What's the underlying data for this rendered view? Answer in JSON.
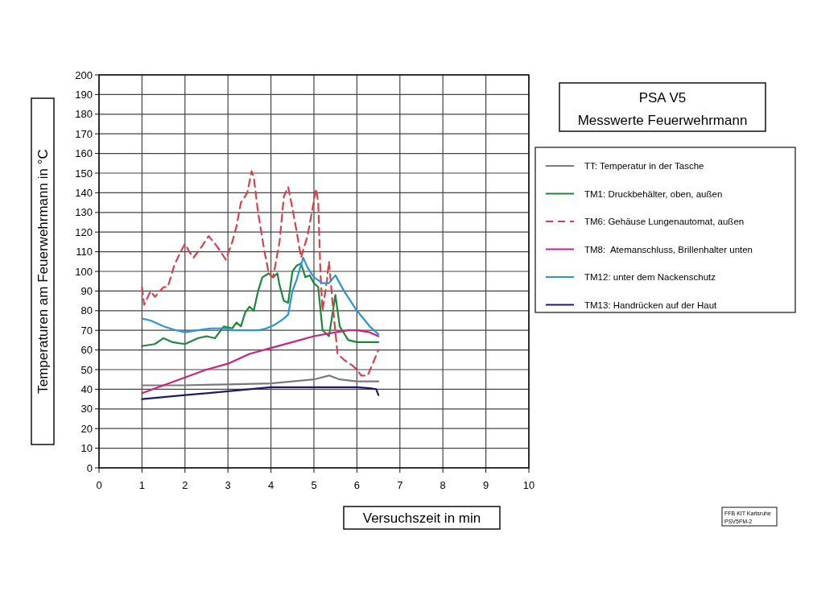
{
  "chart_data": {
    "type": "line",
    "title": "PSA V5",
    "subtitle": "Messwerte Feuerwehrmann",
    "xlabel": "Versuchszeit in min",
    "ylabel": "Temperaturen am Feuerwehrmann in °C",
    "xlim": [
      0,
      10
    ],
    "xticks": [
      0,
      1,
      2,
      3,
      4,
      5,
      6,
      7,
      8,
      9,
      10
    ],
    "ylim": [
      0,
      200
    ],
    "yticks": [
      0,
      10,
      20,
      30,
      40,
      50,
      60,
      70,
      80,
      90,
      100,
      110,
      120,
      130,
      140,
      150,
      160,
      170,
      180,
      190,
      200
    ],
    "grid": true,
    "legend": "right",
    "marker": "none",
    "annotations": [
      "FFB KIT Karlsruhe",
      "PSV5FM-2"
    ],
    "series": [
      {
        "name": "TT: Temperatur in der Tasche",
        "color": "#7a7a7a",
        "x": [
          1,
          2,
          3,
          4,
          4.5,
          5,
          5.35,
          5.6,
          6,
          6.5
        ],
        "values": [
          42,
          42,
          42.5,
          43,
          44,
          45,
          47,
          45,
          44,
          44
        ]
      },
      {
        "name": "TM1: Druckbehälter, oben, außen",
        "color": "#1a8a3a",
        "x": [
          1,
          1.3,
          1.5,
          1.7,
          2,
          2.3,
          2.5,
          2.7,
          2.9,
          3.1,
          3.2,
          3.3,
          3.4,
          3.5,
          3.6,
          3.7,
          3.8,
          3.95,
          4.05,
          4.15,
          4.2,
          4.3,
          4.4,
          4.5,
          4.6,
          4.7,
          4.8,
          4.9,
          5,
          5.1,
          5.2,
          5.35,
          5.5,
          5.6,
          5.8,
          6,
          6.3,
          6.5
        ],
        "values": [
          62,
          63,
          66,
          64,
          63,
          66,
          67,
          66,
          72,
          71,
          74,
          72,
          79,
          82,
          80,
          90,
          97,
          99,
          97,
          99,
          93,
          85,
          84,
          100,
          103,
          104,
          97,
          98,
          94,
          92,
          70,
          67,
          88,
          72,
          65,
          64,
          64,
          64
        ]
      },
      {
        "name": "TM6: Gehäuse Lungenautomat, außen",
        "color": "#d9404a",
        "line_style": "dashed",
        "x": [
          1,
          1.05,
          1.2,
          1.3,
          1.5,
          1.6,
          1.75,
          1.9,
          2,
          2.1,
          2.2,
          2.4,
          2.55,
          2.7,
          2.8,
          2.95,
          3.1,
          3.2,
          3.3,
          3.45,
          3.55,
          3.6,
          3.7,
          3.85,
          3.95,
          4.05,
          4.2,
          4.3,
          4.4,
          4.5,
          4.6,
          4.7,
          4.85,
          5,
          5.05,
          5.1,
          5.15,
          5.2,
          5.3,
          5.35,
          5.45,
          5.55,
          5.7,
          5.9,
          6,
          6.1,
          6.25,
          6.35,
          6.5
        ],
        "values": [
          92,
          83,
          90,
          87,
          92,
          92,
          103,
          110,
          114,
          110,
          107,
          113,
          118,
          114,
          111,
          106,
          115,
          123,
          135,
          140,
          151,
          148,
          130,
          110,
          99,
          97,
          115,
          138,
          143,
          132,
          120,
          107,
          118,
          136,
          142,
          135,
          100,
          80,
          95,
          105,
          80,
          58,
          55,
          52,
          50,
          47,
          47,
          52,
          60
        ]
      },
      {
        "name": "TM8:  Atemanschluss, Brillenhalter unten",
        "color": "#d0207f",
        "x": [
          1,
          1.5,
          2,
          2.5,
          3,
          3.5,
          4,
          4.5,
          5,
          5.5,
          5.8,
          6,
          6.3,
          6.5
        ],
        "values": [
          38,
          42,
          46,
          50,
          53,
          58,
          61,
          64,
          67,
          69,
          70,
          70,
          69,
          67
        ]
      },
      {
        "name": "TM12: unter dem Nackenschutz",
        "color": "#2a94d8",
        "x": [
          1,
          1.2,
          1.5,
          1.8,
          2,
          2.3,
          2.6,
          2.9,
          3.1,
          3.4,
          3.7,
          3.9,
          4.1,
          4.3,
          4.4,
          4.5,
          4.6,
          4.75,
          4.85,
          5,
          5.2,
          5.35,
          5.5,
          5.7,
          6,
          6.3,
          6.5
        ],
        "values": [
          76,
          75,
          72,
          70,
          69,
          70,
          71,
          71,
          70,
          70,
          70,
          71,
          73,
          76,
          78,
          90,
          96,
          107,
          102,
          97,
          94,
          94,
          98,
          90,
          80,
          72,
          68
        ]
      },
      {
        "name": "TM13: Handrücken auf der Haut",
        "color": "#1c1c6e",
        "x": [
          1,
          1.5,
          2,
          2.5,
          3,
          3.5,
          4,
          4.5,
          5,
          5.5,
          6,
          6.3,
          6.45,
          6.5
        ],
        "values": [
          35,
          36,
          37,
          38,
          39,
          40,
          41,
          41,
          41,
          41,
          41,
          40.5,
          40,
          37
        ]
      }
    ]
  }
}
